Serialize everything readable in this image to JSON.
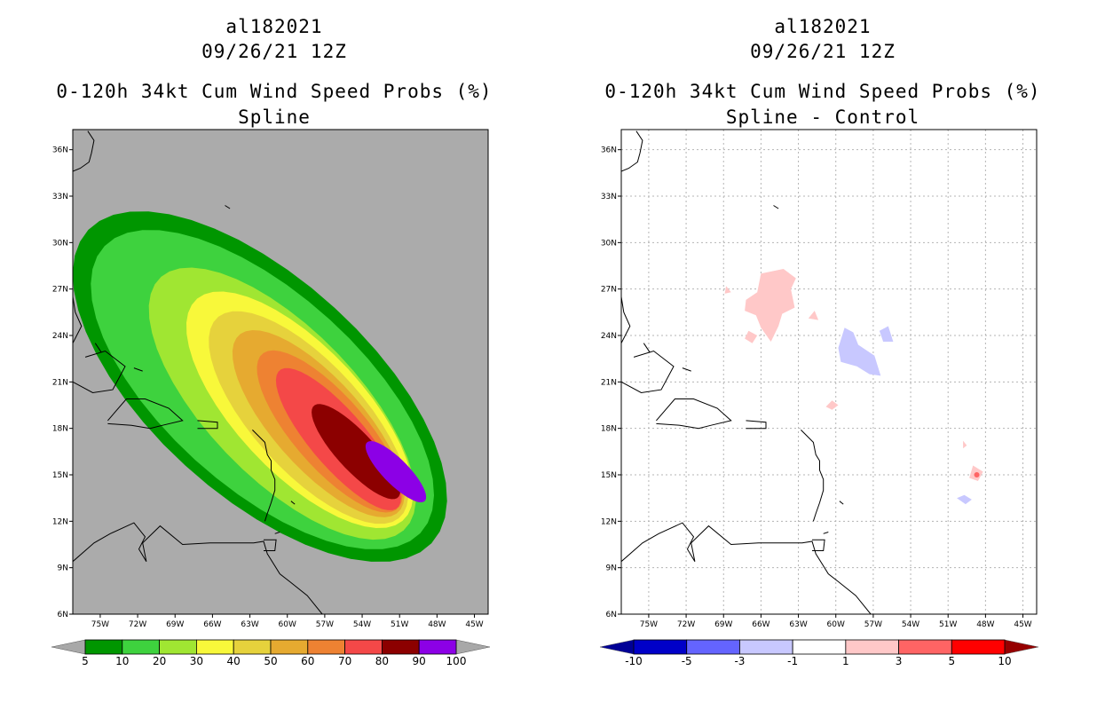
{
  "left_panel": {
    "storm_id": "al182021",
    "date": "09/26/21 12Z",
    "product": "0-120h 34kt Cum Wind Speed Probs (%)",
    "subtitle": "Spline",
    "colorbar": {
      "labels": [
        "5",
        "10",
        "20",
        "30",
        "40",
        "50",
        "60",
        "70",
        "80",
        "90",
        "100"
      ],
      "colors": [
        "#009600",
        "#3ed23e",
        "#a0e632",
        "#f8f83a",
        "#e6d23c",
        "#e6aa30",
        "#ee8232",
        "#f44848",
        "#8c0000",
        "#8c00e6"
      ]
    }
  },
  "right_panel": {
    "storm_id": "al182021",
    "date": "09/26/21 12Z",
    "product": "0-120h 34kt Cum Wind Speed Probs (%)",
    "subtitle": "Spline - Control",
    "colorbar": {
      "labels": [
        "-10",
        "-5",
        "-3",
        "-1",
        "1",
        "3",
        "5",
        "10"
      ],
      "colors": [
        "#0000c8",
        "#6464ff",
        "#c8c8ff",
        "#ffffff",
        "#ffc8c8",
        "#ff6464",
        "#ff0000"
      ],
      "end_colors": [
        "#000096",
        "#960000"
      ]
    }
  },
  "axes": {
    "lat_labels": [
      "36N",
      "33N",
      "30N",
      "27N",
      "24N",
      "21N",
      "18N",
      "15N",
      "12N",
      "9N",
      "6N"
    ],
    "lon_labels": [
      "75W",
      "72W",
      "69W",
      "66W",
      "63W",
      "60W",
      "57W",
      "54W",
      "51W",
      "48W",
      "45W"
    ]
  },
  "colors": {
    "ocean_left": "#ababab",
    "coast": "#000000",
    "grid": "#b4b4b4"
  }
}
